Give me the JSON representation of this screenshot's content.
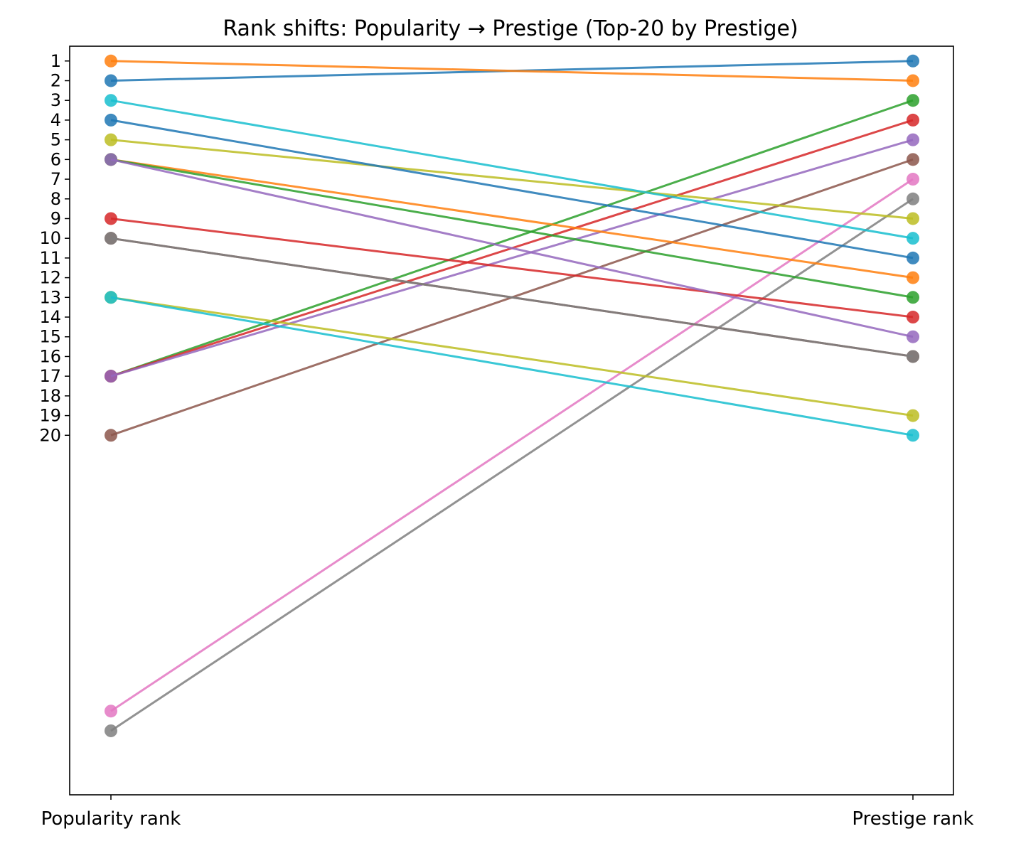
{
  "chart_data": {
    "type": "line",
    "title": "Rank shifts: Popularity → Prestige (Top-20 by Prestige)",
    "categories": [
      "Popularity rank",
      "Prestige rank"
    ],
    "yticks": [
      1,
      2,
      3,
      4,
      5,
      6,
      7,
      8,
      9,
      10,
      11,
      12,
      13,
      14,
      15,
      16,
      17,
      18,
      19,
      20
    ],
    "ylim": [
      0.25,
      38.25
    ],
    "y_inverted": true,
    "grid": false,
    "series": [
      {
        "values": [
          2,
          1
        ],
        "color": "#1f77b4"
      },
      {
        "values": [
          1,
          2
        ],
        "color": "#ff7f0e"
      },
      {
        "values": [
          17,
          3
        ],
        "color": "#2ca02c"
      },
      {
        "values": [
          17,
          4
        ],
        "color": "#d62728"
      },
      {
        "values": [
          17,
          5
        ],
        "color": "#9467bd"
      },
      {
        "values": [
          20,
          6
        ],
        "color": "#8c564b"
      },
      {
        "values": [
          34,
          7
        ],
        "color": "#e377c2"
      },
      {
        "values": [
          35,
          8
        ],
        "color": "#7f7f7f"
      },
      {
        "values": [
          5,
          9
        ],
        "color": "#bcbd22"
      },
      {
        "values": [
          3,
          10
        ],
        "color": "#17becf"
      },
      {
        "values": [
          4,
          11
        ],
        "color": "#1f77b4"
      },
      {
        "values": [
          6,
          12
        ],
        "color": "#ff7f0e"
      },
      {
        "values": [
          6,
          13
        ],
        "color": "#2ca02c"
      },
      {
        "values": [
          9,
          14
        ],
        "color": "#d62728"
      },
      {
        "values": [
          6,
          15
        ],
        "color": "#9467bd"
      },
      {
        "values": [
          10,
          16
        ],
        "color": "#8c564b"
      },
      {
        "values": [
          10,
          16
        ],
        "color": "#7f7f7f"
      },
      {
        "values": [
          13,
          19
        ],
        "color": "#bcbd22"
      },
      {
        "values": [
          13,
          20
        ],
        "color": "#17becf"
      }
    ]
  }
}
